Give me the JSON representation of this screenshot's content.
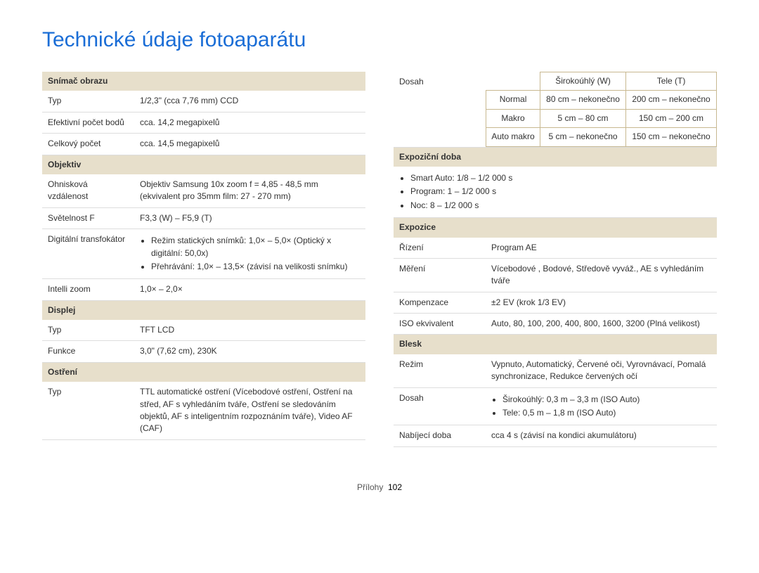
{
  "title": "Technické údaje fotoaparátu",
  "footer_label": "Přílohy",
  "footer_page": "102",
  "left": {
    "sec1": {
      "header": "Snímač obrazu",
      "r1l": "Typ",
      "r1v": "1/2,3\" (cca 7,76 mm) CCD",
      "r2l": "Efektivní počet bodů",
      "r2v": "cca. 14,2 megapixelů",
      "r3l": "Celkový počet",
      "r3v": "cca. 14,5 megapixelů"
    },
    "sec2": {
      "header": "Objektiv",
      "r1l": "Ohnisková vzdálenost",
      "r1v": "Objektiv Samsung 10x zoom f = 4,85 - 48,5 mm (ekvivalent pro 35mm film: 27 - 270 mm)",
      "r2l": "Světelnost F",
      "r2v": "F3,3 (W) – F5,9 (T)",
      "r3l": "Digitální transfokátor",
      "r3b1": "Režim statických snímků: 1,0× – 5,0× (Optický x digitální: 50,0x)",
      "r3b2": "Přehrávání: 1,0× – 13,5× (závisí na velikosti snímku)",
      "r4l": "Intelli zoom",
      "r4v": "1,0× – 2,0×"
    },
    "sec3": {
      "header": "Displej",
      "r1l": "Typ",
      "r1v": "TFT LCD",
      "r2l": "Funkce",
      "r2v": "3,0\" (7,62 cm), 230K"
    },
    "sec4": {
      "header": "Ostření",
      "r1l": "Typ",
      "r1v": "TTL automatické ostření (Vícebodové ostření, Ostření na střed, AF s vyhledáním tváře, Ostření se sledováním objektů, AF s inteligentním rozpoznáním tváře), Video AF (CAF)"
    }
  },
  "right": {
    "range": {
      "label": "Dosah",
      "h_empty": "",
      "h_w": "Širokoúhlý (W)",
      "h_t": "Tele (T)",
      "r1l": "Normal",
      "r1w": "80 cm – nekonečno",
      "r1t": "200 cm – nekonečno",
      "r2l": "Makro",
      "r2w": "5 cm – 80 cm",
      "r2t": "150 cm – 200 cm",
      "r3l": "Auto makro",
      "r3w": "5 cm – nekonečno",
      "r3t": "150 cm – nekonečno"
    },
    "sec1": {
      "header": "Expoziční doba",
      "b1": "Smart Auto: 1/8 – 1/2 000 s",
      "b2": "Program: 1 – 1/2 000 s",
      "b3": "Noc: 8 – 1/2 000 s"
    },
    "sec2": {
      "header": "Expozice",
      "r1l": "Řízení",
      "r1v": "Program AE",
      "r2l": "Měření",
      "r2v": "Vícebodové , Bodové, Středově vyváž., AE s vyhledáním tváře",
      "r3l": "Kompenzace",
      "r3v": "±2 EV (krok 1/3 EV)",
      "r4l": "ISO ekvivalent",
      "r4v": "Auto, 80, 100, 200, 400, 800, 1600, 3200 (Plná velikost)"
    },
    "sec3": {
      "header": "Blesk",
      "r1l": "Režim",
      "r1v": "Vypnuto, Automatický, Červené oči, Vyrovnávací, Pomalá synchronizace, Redukce červených očí",
      "r2l": "Dosah",
      "r2b1": "Širokoúhlý: 0,3 m – 3,3 m (ISO Auto)",
      "r2b2": "Tele: 0,5 m – 1,8 m (ISO Auto)",
      "r3l": "Nabíjecí doba",
      "r3v": "cca 4 s (závisí na kondici akumulátoru)"
    }
  }
}
